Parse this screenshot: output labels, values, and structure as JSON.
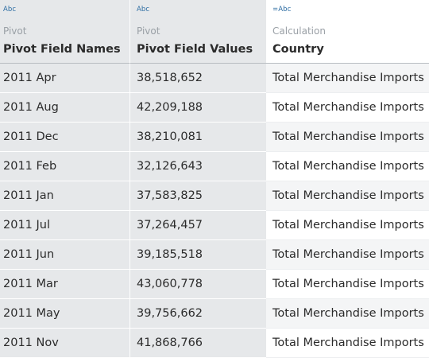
{
  "columns": [
    {
      "type_tag": "Abc",
      "origin": "Pivot",
      "name": "Pivot Field Names"
    },
    {
      "type_tag": "Abc",
      "origin": "Pivot",
      "name": "Pivot Field Values"
    },
    {
      "type_tag": "=Abc",
      "origin": "Calculation",
      "name": "Country"
    }
  ],
  "rows": [
    [
      "2011 Apr",
      "38,518,652",
      "Total Merchandise Imports"
    ],
    [
      "2011 Aug",
      "42,209,188",
      "Total Merchandise Imports"
    ],
    [
      "2011 Dec",
      "38,210,081",
      "Total Merchandise Imports"
    ],
    [
      "2011 Feb",
      "32,126,643",
      "Total Merchandise Imports"
    ],
    [
      "2011 Jan",
      "37,583,825",
      "Total Merchandise Imports"
    ],
    [
      "2011 Jul",
      "37,264,457",
      "Total Merchandise Imports"
    ],
    [
      "2011 Jun",
      "39,185,518",
      "Total Merchandise Imports"
    ],
    [
      "2011 Mar",
      "43,060,778",
      "Total Merchandise Imports"
    ],
    [
      "2011 May",
      "39,756,662",
      "Total Merchandise Imports"
    ],
    [
      "2011 Nov",
      "41,868,766",
      "Total Merchandise Imports"
    ]
  ],
  "colors": {
    "shaded_column": "#e6e8ea",
    "type_tag": "#2d6da3",
    "origin": "#9aa0a6",
    "text": "#2b2b2b"
  }
}
